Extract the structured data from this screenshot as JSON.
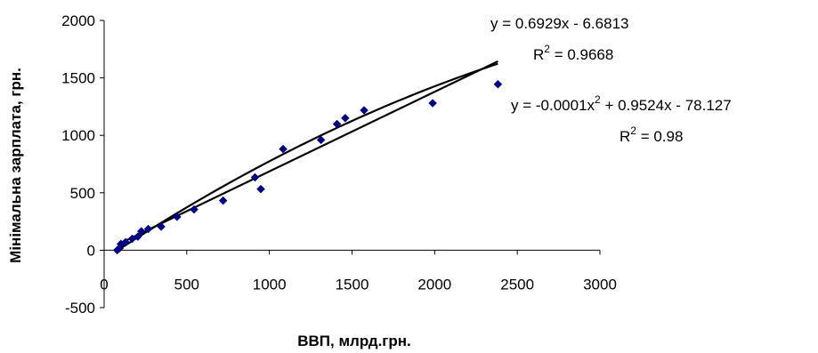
{
  "chart_data": {
    "type": "scatter",
    "title": "",
    "xlabel": "ВВП, млрд.грн.",
    "ylabel": "Мінімальна зарплата, грн.",
    "xlim": [
      0,
      3000
    ],
    "ylim": [
      -500,
      2000
    ],
    "x_ticks": [
      "0",
      "500",
      "1000",
      "1500",
      "2000",
      "2500",
      "3000"
    ],
    "y_ticks": [
      "2000",
      "1500",
      "1000",
      "500",
      "0",
      "-500"
    ],
    "grid": false,
    "marker_color": "#000080",
    "line_color": "#000000",
    "series": [
      {
        "x": [
          79,
          93,
          102,
          130,
          170,
          204,
          225,
          267,
          345,
          441,
          544,
          720,
          913,
          948,
          1083,
          1312,
          1409,
          1459,
          1573,
          1988,
          2383
        ],
        "y": [
          0,
          17,
          55,
          70,
          100,
          118,
          165,
          185,
          205,
          290,
          354,
          432,
          634,
          532,
          881,
          960,
          1098,
          1150,
          1218,
          1280,
          1445
        ]
      }
    ],
    "trendlines": [
      {
        "kind": "linear",
        "coefficients": {
          "a": 0.6929,
          "b": -6.6813
        },
        "x_range": [
          79,
          2383
        ],
        "equation": "y = 0.6929x - 6.6813",
        "r2_prefix": "R",
        "r2_sup": "2",
        "r2_value": " = 0.9668"
      },
      {
        "kind": "polynomial",
        "coefficients": {
          "a": -0.0001,
          "b": 0.9524,
          "c": -78.127
        },
        "x_range": [
          79,
          2383
        ],
        "equation_part1": "y = -0.0001x",
        "equation_sup": "2",
        "equation_part2": " + 0.9524x - 78.127",
        "r2_prefix": "R",
        "r2_sup": "2",
        "r2_value": " = 0.98"
      }
    ]
  }
}
